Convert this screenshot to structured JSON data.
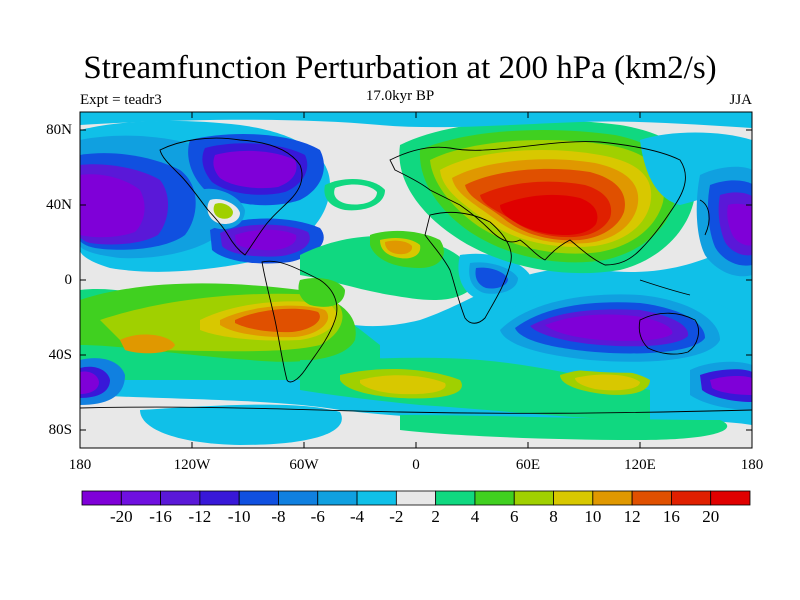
{
  "title": "Streamfunction Perturbation at 200 hPa (km2/s)",
  "subtitle_left": "Expt = teadr3",
  "subtitle_center": "17.0kyr BP",
  "subtitle_right": "JJA",
  "y_ticks": [
    "80N",
    "40N",
    "0",
    "40S",
    "80S"
  ],
  "x_ticks": [
    "180",
    "120W",
    "60W",
    "0",
    "60E",
    "120E",
    "180"
  ],
  "colorbar": {
    "colors": [
      "#7f00d8",
      "#6f10e0",
      "#5a18d8",
      "#3818d8",
      "#1050e0",
      "#1080e0",
      "#10a0e0",
      "#10c0e8",
      "#e8e8e8",
      "#10d880",
      "#40d020",
      "#a0d000",
      "#d8c800",
      "#e09800",
      "#e05000",
      "#e02000",
      "#e00000"
    ],
    "labels": [
      "-20",
      "-16",
      "-12",
      "-10",
      "-8",
      "-6",
      "-4",
      "-2",
      "2",
      "4",
      "6",
      "8",
      "10",
      "12",
      "16",
      "20"
    ]
  }
}
